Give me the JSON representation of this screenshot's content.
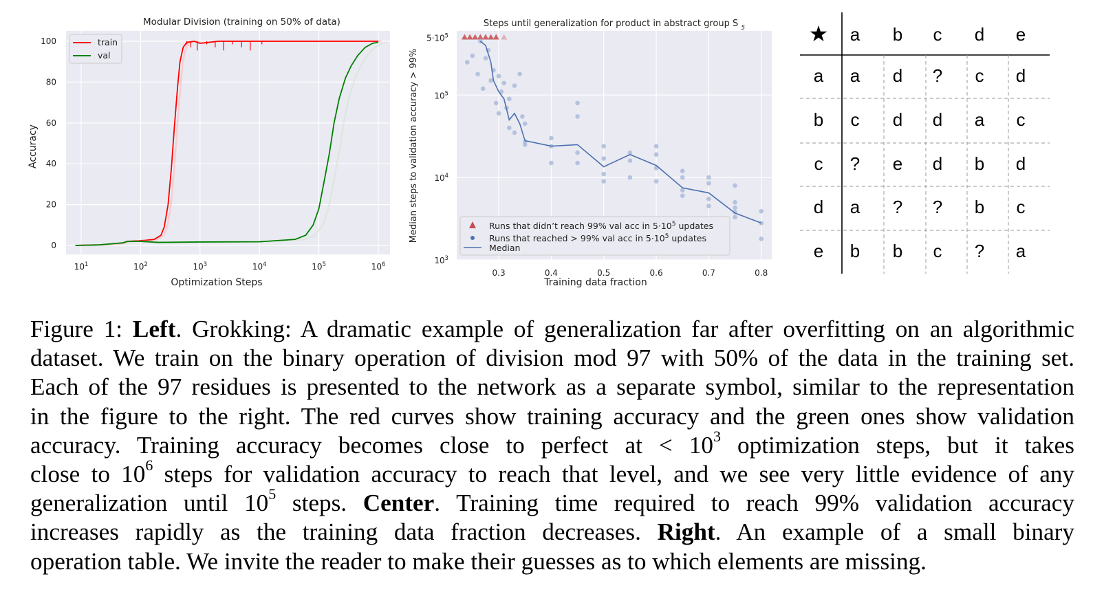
{
  "chart_data": [
    {
      "type": "line",
      "title": "Modular Division (training on 50% of data)",
      "xlabel": "Optimization Steps",
      "ylabel": "Accuracy",
      "xscale": "log",
      "xlim": [
        10,
        1000000
      ],
      "ylim": [
        0,
        100
      ],
      "xticks": [
        10,
        100,
        1000,
        10000,
        100000,
        1000000
      ],
      "xtick_labels": [
        [
          "10",
          "1"
        ],
        [
          "10",
          "2"
        ],
        [
          "10",
          "3"
        ],
        [
          "10",
          "4"
        ],
        [
          "10",
          "5"
        ],
        [
          "10",
          "6"
        ]
      ],
      "yticks": [
        0,
        20,
        40,
        60,
        80,
        100
      ],
      "ytick_labels": [
        "0",
        "20",
        "40",
        "60",
        "80",
        "100"
      ],
      "legend_position": "top-left",
      "grid": true,
      "series": [
        {
          "name": "train",
          "color": "#ff0000",
          "x": [
            8,
            20,
            50,
            60,
            80,
            120,
            170,
            220,
            250,
            290,
            330,
            370,
            420,
            460,
            520,
            600,
            800,
            1000,
            2000,
            10000,
            100000,
            1000000
          ],
          "y": [
            0,
            0.3,
            1,
            2,
            2.2,
            2.5,
            3,
            5,
            9,
            20,
            38,
            58,
            78,
            90,
            97,
            99.5,
            100,
            99,
            100,
            100,
            100,
            100
          ]
        },
        {
          "name": "val",
          "color": "#008000",
          "x": [
            8,
            20,
            50,
            60,
            100,
            200,
            1000,
            10000,
            40000,
            60000,
            80000,
            100000,
            120000,
            150000,
            180000,
            220000,
            280000,
            350000,
            450000,
            600000,
            800000,
            1000000
          ],
          "y": [
            0,
            0.3,
            1.3,
            2,
            2,
            1.5,
            1.7,
            1.8,
            3,
            5,
            10,
            18,
            30,
            45,
            60,
            72,
            82,
            88,
            93,
            97,
            99,
            99.5
          ]
        }
      ]
    },
    {
      "type": "scatter",
      "title": "Steps until generalization for product in abstract group S",
      "title_subscript": "5",
      "xlabel": "Training data fraction",
      "ylabel": "Median steps to validation accuracy > 99%",
      "yscale": "log",
      "xlim": [
        0.22,
        0.82
      ],
      "ylim": [
        1000,
        600000
      ],
      "xticks": [
        0.3,
        0.4,
        0.5,
        0.6,
        0.7,
        0.8
      ],
      "xtick_labels": [
        "0.3",
        "0.4",
        "0.5",
        "0.6",
        "0.7",
        "0.8"
      ],
      "yticks": [
        1000,
        10000,
        100000,
        500000
      ],
      "ytick_labels": [
        [
          "10",
          "3"
        ],
        [
          "10",
          "4"
        ],
        [
          "10",
          "5"
        ],
        [
          "5·10",
          "5"
        ]
      ],
      "legend_position": "bottom-left",
      "grid": true,
      "series": [
        {
          "name": "Runs that didn't reach 99% val acc in 5·10⁵ updates",
          "color": "#c44e52",
          "marker": "triangle",
          "x": [
            0.235,
            0.245,
            0.255,
            0.265,
            0.275,
            0.285,
            0.295,
            0.31
          ],
          "y": [
            500000,
            500000,
            500000,
            500000,
            500000,
            500000,
            500000,
            500000
          ]
        },
        {
          "name": "Runs that reached > 99% val acc in 5·10⁵ updates",
          "color": "#4c72b0",
          "marker": "circle",
          "x": [
            0.24,
            0.25,
            0.26,
            0.265,
            0.27,
            0.275,
            0.28,
            0.285,
            0.29,
            0.295,
            0.3,
            0.3,
            0.305,
            0.31,
            0.315,
            0.32,
            0.32,
            0.33,
            0.33,
            0.34,
            0.345,
            0.35,
            0.35,
            0.35,
            0.4,
            0.4,
            0.4,
            0.45,
            0.45,
            0.45,
            0.45,
            0.5,
            0.5,
            0.5,
            0.5,
            0.55,
            0.55,
            0.55,
            0.6,
            0.6,
            0.6,
            0.6,
            0.65,
            0.65,
            0.65,
            0.65,
            0.7,
            0.7,
            0.7,
            0.7,
            0.75,
            0.75,
            0.75,
            0.75,
            0.75,
            0.8,
            0.8,
            0.8
          ],
          "y": [
            250000,
            300000,
            180000,
            450000,
            120000,
            280000,
            350000,
            150000,
            200000,
            80000,
            170000,
            60000,
            110000,
            140000,
            70000,
            90000,
            40000,
            130000,
            35000,
            180000,
            55000,
            45000,
            27000,
            25000,
            30000,
            24000,
            15000,
            80000,
            55000,
            20000,
            15000,
            24000,
            17000,
            11000,
            9000,
            20000,
            16000,
            10000,
            24000,
            19000,
            13000,
            9000,
            12000,
            10000,
            7000,
            6000,
            10000,
            8500,
            5500,
            4500,
            8000,
            5000,
            4300,
            3800,
            3300,
            3900,
            2800,
            1800
          ]
        },
        {
          "name": "Median",
          "color": "#4c72b0",
          "marker": "line",
          "x": [
            0.265,
            0.275,
            0.285,
            0.29,
            0.3,
            0.31,
            0.32,
            0.33,
            0.34,
            0.35,
            0.4,
            0.45,
            0.5,
            0.55,
            0.6,
            0.65,
            0.7,
            0.75,
            0.8
          ],
          "y": [
            450000,
            400000,
            250000,
            150000,
            110000,
            90000,
            50000,
            60000,
            45000,
            28000,
            24000,
            25000,
            13500,
            19000,
            14000,
            7500,
            6500,
            3700,
            2800
          ]
        }
      ]
    },
    {
      "type": "table",
      "operator": "★",
      "columns": [
        "a",
        "b",
        "c",
        "d",
        "e"
      ],
      "rows": [
        {
          "label": "a",
          "cells": [
            "a",
            "d",
            "?",
            "c",
            "d"
          ]
        },
        {
          "label": "b",
          "cells": [
            "c",
            "d",
            "d",
            "a",
            "c"
          ]
        },
        {
          "label": "c",
          "cells": [
            "?",
            "e",
            "d",
            "b",
            "d"
          ]
        },
        {
          "label": "d",
          "cells": [
            "a",
            "?",
            "?",
            "b",
            "c"
          ]
        },
        {
          "label": "e",
          "cells": [
            "b",
            "b",
            "c",
            "?",
            "a"
          ]
        }
      ]
    }
  ],
  "caption": {
    "label": "Figure 1:",
    "left_bold": "Left",
    "left_text": ". Grokking: A dramatic example of generalization far after overfitting on an algorithmic",
    "line2": "dataset. We train on the binary operation of division mod 97 with 50% of the data in the training set.",
    "line3": "Each of the 97 residues is presented to the network as a separate symbol, similar to the representation",
    "line4": "in the figure to the right. The red curves show training accuracy and the green ones show validation",
    "line5_a": "accuracy. Training accuracy becomes close to perfect at < 10",
    "line5_sup": "3",
    "line5_b": " optimization steps, but it takes",
    "line6_a": "close to 10",
    "line6_sup": "6",
    "line6_b": " steps for validation accuracy to reach that level, and we see very little evidence of any",
    "line7_a": "generalization until 10",
    "line7_sup": "5",
    "line7_b": " steps. ",
    "center_bold": "Center",
    "center_text": ". Training time required to reach 99% validation accuracy",
    "line8_a": "increases rapidly as the training data fraction decreases. ",
    "right_bold": "Right",
    "right_text": ". An example of a small binary",
    "line9": "operation table. We invite the reader to make their guesses as to which elements are missing."
  }
}
